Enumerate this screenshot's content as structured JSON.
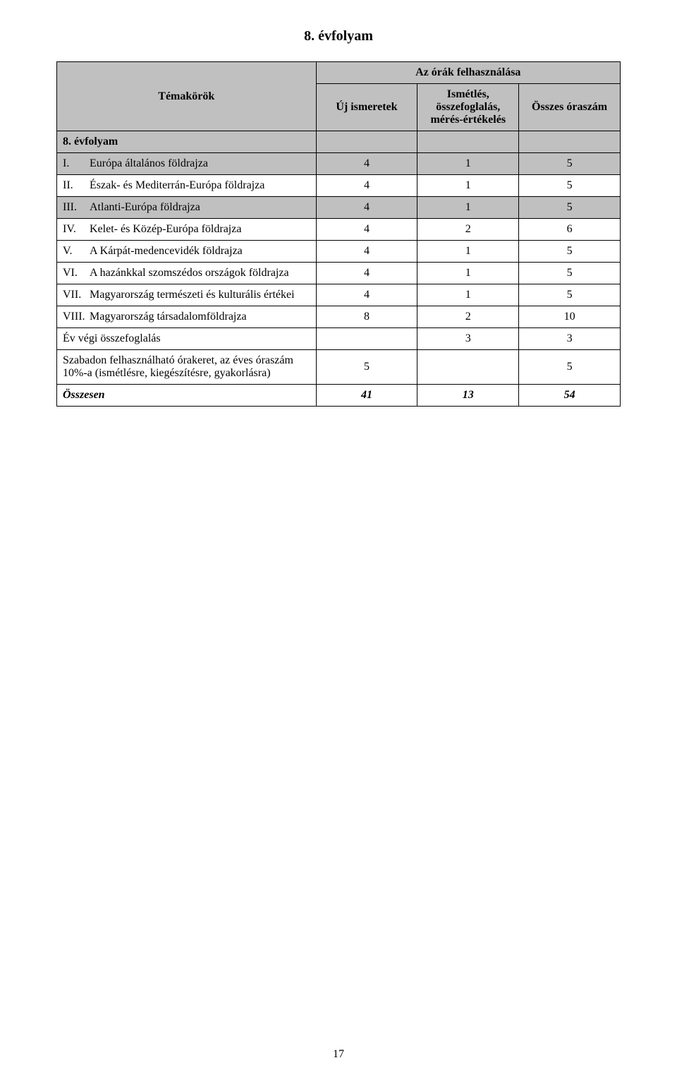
{
  "title": "8. évfolyam",
  "header": {
    "col0": "Témakörök",
    "group": "Az órák felhasználása",
    "col1": "Új ismeretek",
    "col2": "Ismétlés, összefoglalás, mérés-értékelés",
    "col3": "Összes óraszám"
  },
  "section_row": "8. évfolyam",
  "rows": [
    {
      "roman": "I.",
      "label": "Európa általános földrajza",
      "c1": "4",
      "c2": "1",
      "c3": "5",
      "shade": true
    },
    {
      "roman": "II.",
      "label": "Észak- és Mediterrán-Európa földrajza",
      "c1": "4",
      "c2": "1",
      "c3": "5",
      "shade": false
    },
    {
      "roman": "III.",
      "label": "Atlanti-Európa földrajza",
      "c1": "4",
      "c2": "1",
      "c3": "5",
      "shade": true
    },
    {
      "roman": "IV.",
      "label": "Kelet- és Közép-Európa földrajza",
      "c1": "4",
      "c2": "2",
      "c3": "6",
      "shade": false
    },
    {
      "roman": "V.",
      "label": "A Kárpát-medencevidék földrajza",
      "c1": "4",
      "c2": "1",
      "c3": "5",
      "shade": false
    },
    {
      "roman": "VI.",
      "label": "A hazánkkal szomszédos országok földrajza",
      "c1": "4",
      "c2": "1",
      "c3": "5",
      "shade": false
    },
    {
      "roman": "VII.",
      "label": "Magyarország természeti és kulturális értékei",
      "c1": "4",
      "c2": "1",
      "c3": "5",
      "shade": false
    },
    {
      "roman": "VIII.",
      "label": "Magyarország társadalomföldrajza",
      "c1": "8",
      "c2": "2",
      "c3": "10",
      "shade": false
    }
  ],
  "summary_row": {
    "label": "Év végi összefoglalás",
    "c1": "",
    "c2": "3",
    "c3": "3"
  },
  "free_row": {
    "label": "Szabadon felhasználható órakeret, az éves óraszám 10%-a (ismétlésre, kiegészítésre, gyakorlásra)",
    "c1": "5",
    "c2": "",
    "c3": "5"
  },
  "total_row": {
    "label": "Összesen",
    "c1": "41",
    "c2": "13",
    "c3": "54"
  },
  "colors": {
    "header_bg": "#c0c0c0",
    "border": "#000000",
    "text": "#000000",
    "bg": "#ffffff"
  },
  "page_number": "17"
}
